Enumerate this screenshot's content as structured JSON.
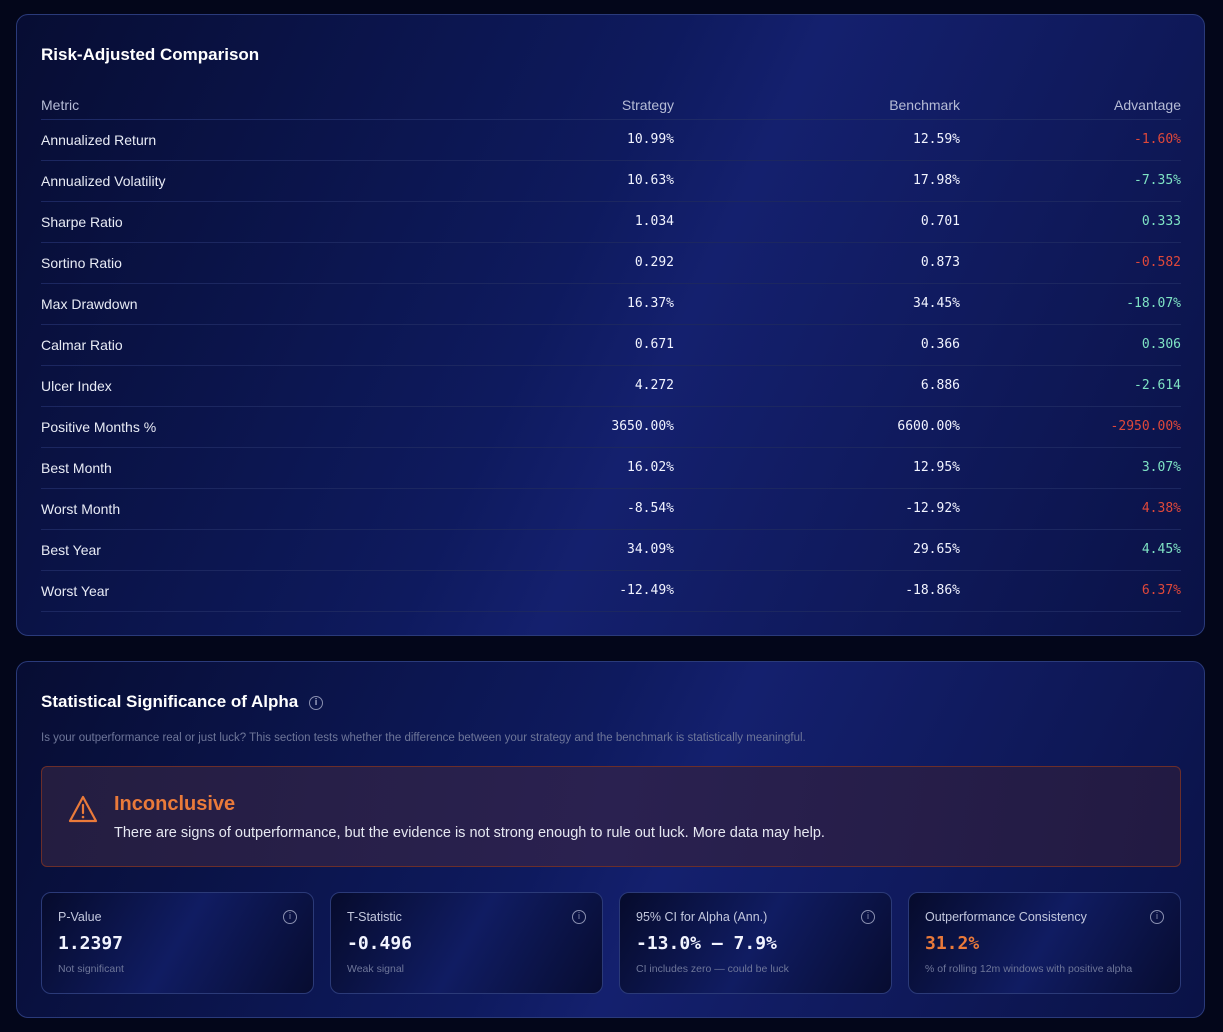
{
  "comparison": {
    "title": "Risk-Adjusted Comparison",
    "headers": [
      "Metric",
      "Strategy",
      "Benchmark",
      "Advantage"
    ],
    "rows": [
      {
        "metric": "Annualized Return",
        "strategy": "10.99%",
        "benchmark": "12.59%",
        "advantage": "-1.60%",
        "favorable": false
      },
      {
        "metric": "Annualized Volatility",
        "strategy": "10.63%",
        "benchmark": "17.98%",
        "advantage": "-7.35%",
        "favorable": true
      },
      {
        "metric": "Sharpe Ratio",
        "strategy": "1.034",
        "benchmark": "0.701",
        "advantage": "0.333",
        "favorable": true
      },
      {
        "metric": "Sortino Ratio",
        "strategy": "0.292",
        "benchmark": "0.873",
        "advantage": "-0.582",
        "favorable": false
      },
      {
        "metric": "Max Drawdown",
        "strategy": "16.37%",
        "benchmark": "34.45%",
        "advantage": "-18.07%",
        "favorable": true
      },
      {
        "metric": "Calmar Ratio",
        "strategy": "0.671",
        "benchmark": "0.366",
        "advantage": "0.306",
        "favorable": true
      },
      {
        "metric": "Ulcer Index",
        "strategy": "4.272",
        "benchmark": "6.886",
        "advantage": "-2.614",
        "favorable": true
      },
      {
        "metric": "Positive Months %",
        "strategy": "3650.00%",
        "benchmark": "6600.00%",
        "advantage": "-2950.00%",
        "favorable": false
      },
      {
        "metric": "Best Month",
        "strategy": "16.02%",
        "benchmark": "12.95%",
        "advantage": "3.07%",
        "favorable": true
      },
      {
        "metric": "Worst Month",
        "strategy": "-8.54%",
        "benchmark": "-12.92%",
        "advantage": "4.38%",
        "favorable": false
      },
      {
        "metric": "Best Year",
        "strategy": "34.09%",
        "benchmark": "29.65%",
        "advantage": "4.45%",
        "favorable": true
      },
      {
        "metric": "Worst Year",
        "strategy": "-12.49%",
        "benchmark": "-18.86%",
        "advantage": "6.37%",
        "favorable": false
      }
    ]
  },
  "significance": {
    "title": "Statistical Significance of Alpha",
    "subtitle": "Is your outperformance real or just luck? This section tests whether the difference between your strategy and the benchmark is statistically meaningful.",
    "alert": {
      "icon": "warning-triangle-icon",
      "heading": "Inconclusive",
      "body": "There are signs of outperformance, but the evidence is not strong enough to rule out luck. More data may help."
    },
    "cards": [
      {
        "label": "P-Value",
        "value": "1.2397",
        "note": "Not significant"
      },
      {
        "label": "T-Statistic",
        "value": "-0.496",
        "note": "Weak signal"
      },
      {
        "label": "95% CI for Alpha (Ann.)",
        "value": "-13.0% — 7.9%",
        "note": "CI includes zero — could be luck"
      },
      {
        "label": "Outperformance Consistency",
        "value": "31.2%",
        "note": "% of rolling 12m windows with positive alpha",
        "highlight": true
      }
    ]
  },
  "colors": {
    "positive": "#7fe3c4",
    "negative": "#e0483a",
    "warning": "#ea7a3a"
  }
}
